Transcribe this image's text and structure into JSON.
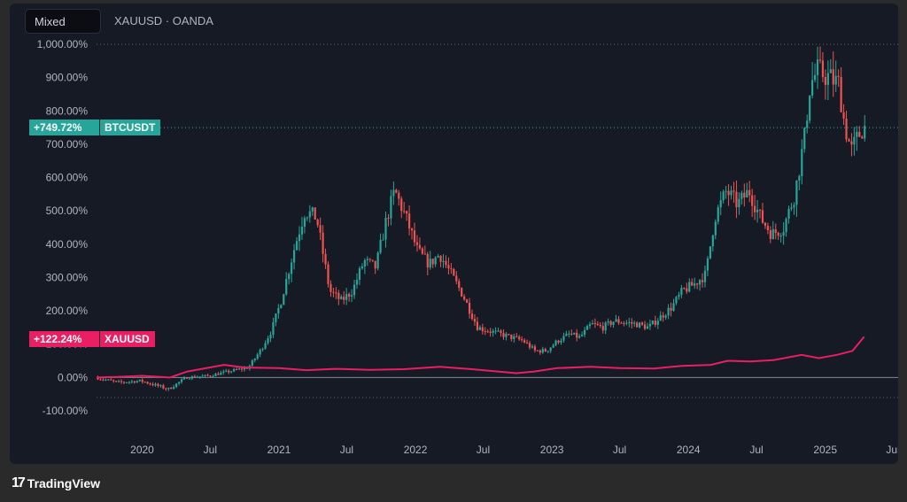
{
  "toolbar": {
    "mode_label": "Mixed",
    "symbol_label": "XAUUSD · OANDA"
  },
  "branding": {
    "logo_glyph": "17",
    "name": "TradingView"
  },
  "colors": {
    "up": "#26a69a",
    "down": "#ef5350",
    "gold_line": "#e91e63",
    "background": "#161a25",
    "text": "#b2b5be",
    "zero_line": "#b2b5be"
  },
  "chart_data": {
    "type": "line",
    "title": "",
    "xlabel": "",
    "ylabel": "",
    "y_unit": "%",
    "ylim": [
      -100,
      1000
    ],
    "yticks": [
      -100,
      0,
      100,
      200,
      300,
      400,
      500,
      600,
      700,
      800,
      900,
      1000
    ],
    "ytick_labels": [
      "-100.00%",
      "0.00%",
      "100.00%",
      "200.00%",
      "300.00%",
      "400.00%",
      "500.00%",
      "600.00%",
      "700.00%",
      "800.00%",
      "900.00%",
      "1,000.00%"
    ],
    "xlim": [
      "2019-09-01",
      "2025-07-15"
    ],
    "xtick_dates": [
      "2020-01-01",
      "2020-07-01",
      "2021-01-01",
      "2021-07-01",
      "2022-01-01",
      "2022-07-01",
      "2023-01-01",
      "2023-07-01",
      "2024-01-01",
      "2024-07-01",
      "2025-01-01",
      "2025-07-01"
    ],
    "xtick_labels": [
      "2020",
      "Jul",
      "2021",
      "Jul",
      "2022",
      "Jul",
      "2023",
      "Jul",
      "2024",
      "Jul",
      "2025",
      "Jul"
    ],
    "grid": false,
    "series": [
      {
        "name": "BTCUSDT",
        "style": "candlestick",
        "last_label": "+749.72%",
        "dates": [
          "2019-09-01",
          "2019-11-01",
          "2020-01-01",
          "2020-03-15",
          "2020-05-01",
          "2020-07-01",
          "2020-09-01",
          "2020-10-15",
          "2020-11-15",
          "2020-12-15",
          "2021-01-10",
          "2021-02-15",
          "2021-03-15",
          "2021-04-15",
          "2021-05-20",
          "2021-06-20",
          "2021-07-20",
          "2021-08-20",
          "2021-09-20",
          "2021-10-20",
          "2021-11-10",
          "2021-12-10",
          "2022-01-10",
          "2022-02-10",
          "2022-03-10",
          "2022-04-10",
          "2022-05-10",
          "2022-06-20",
          "2022-07-20",
          "2022-08-20",
          "2022-09-20",
          "2022-10-20",
          "2022-11-20",
          "2022-12-20",
          "2023-01-20",
          "2023-02-20",
          "2023-03-20",
          "2023-04-20",
          "2023-05-20",
          "2023-06-20",
          "2023-07-20",
          "2023-08-20",
          "2023-09-20",
          "2023-10-20",
          "2023-11-20",
          "2023-12-20",
          "2024-01-20",
          "2024-02-20",
          "2024-03-15",
          "2024-04-15",
          "2024-05-15",
          "2024-06-15",
          "2024-07-15",
          "2024-08-15",
          "2024-09-15",
          "2024-10-15",
          "2024-11-10",
          "2024-11-25",
          "2024-12-15",
          "2025-01-15",
          "2025-02-10",
          "2025-02-25",
          "2025-03-15",
          "2025-04-01",
          "2025-04-15"
        ],
        "values": [
          0,
          -15,
          -10,
          -35,
          0,
          5,
          20,
          30,
          80,
          140,
          230,
          390,
          500,
          480,
          260,
          230,
          260,
          350,
          330,
          480,
          560,
          480,
          380,
          340,
          370,
          310,
          250,
          150,
          140,
          130,
          120,
          110,
          80,
          80,
          110,
          130,
          120,
          160,
          150,
          170,
          165,
          160,
          150,
          180,
          210,
          260,
          280,
          310,
          480,
          560,
          520,
          560,
          480,
          430,
          450,
          550,
          720,
          880,
          920,
          900,
          880,
          760,
          680,
          720,
          750
        ]
      },
      {
        "name": "XAUUSD",
        "style": "line",
        "last_label": "+122.24%",
        "dates": [
          "2019-09-01",
          "2019-11-01",
          "2020-01-01",
          "2020-03-15",
          "2020-05-01",
          "2020-08-07",
          "2020-10-01",
          "2021-01-01",
          "2021-03-15",
          "2021-06-01",
          "2021-09-01",
          "2021-12-01",
          "2022-03-08",
          "2022-06-01",
          "2022-09-28",
          "2022-11-15",
          "2023-01-15",
          "2023-04-15",
          "2023-07-01",
          "2023-10-01",
          "2023-12-15",
          "2024-03-01",
          "2024-04-15",
          "2024-06-15",
          "2024-08-15",
          "2024-10-30",
          "2024-12-15",
          "2025-02-01",
          "2025-03-15",
          "2025-04-15"
        ],
        "values": [
          0,
          2,
          5,
          0,
          18,
          38,
          30,
          28,
          22,
          26,
          23,
          25,
          32,
          25,
          13,
          18,
          28,
          32,
          28,
          27,
          35,
          38,
          50,
          48,
          52,
          68,
          58,
          68,
          80,
          122
        ]
      }
    ]
  }
}
